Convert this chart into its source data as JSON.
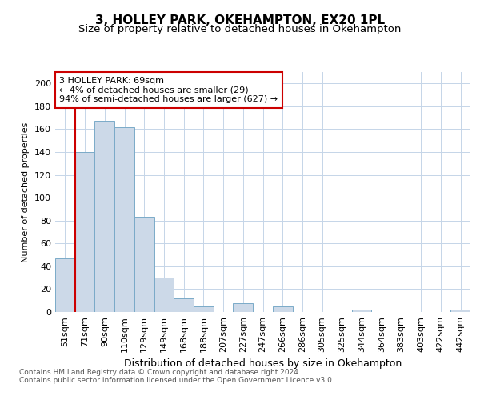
{
  "title": "3, HOLLEY PARK, OKEHAMPTON, EX20 1PL",
  "subtitle": "Size of property relative to detached houses in Okehampton",
  "xlabel": "Distribution of detached houses by size in Okehampton",
  "ylabel": "Number of detached properties",
  "categories": [
    "51sqm",
    "71sqm",
    "90sqm",
    "110sqm",
    "129sqm",
    "149sqm",
    "168sqm",
    "188sqm",
    "207sqm",
    "227sqm",
    "247sqm",
    "266sqm",
    "286sqm",
    "305sqm",
    "325sqm",
    "344sqm",
    "364sqm",
    "383sqm",
    "403sqm",
    "422sqm",
    "442sqm"
  ],
  "values": [
    47,
    140,
    167,
    162,
    83,
    30,
    12,
    5,
    0,
    8,
    0,
    5,
    0,
    0,
    0,
    2,
    0,
    0,
    0,
    0,
    2
  ],
  "bar_color": "#ccd9e8",
  "bar_edge_color": "#7aaac8",
  "highlight_line_color": "#cc0000",
  "annotation_text": "3 HOLLEY PARK: 69sqm\n← 4% of detached houses are smaller (29)\n94% of semi-detached houses are larger (627) →",
  "annotation_box_color": "#ffffff",
  "annotation_box_edge_color": "#cc0000",
  "ylim": [
    0,
    210
  ],
  "yticks": [
    0,
    20,
    40,
    60,
    80,
    100,
    120,
    140,
    160,
    180,
    200
  ],
  "footer_text": "Contains HM Land Registry data © Crown copyright and database right 2024.\nContains public sector information licensed under the Open Government Licence v3.0.",
  "background_color": "#ffffff",
  "plot_background_color": "#ffffff",
  "title_fontsize": 11,
  "subtitle_fontsize": 9.5,
  "xlabel_fontsize": 9,
  "ylabel_fontsize": 8,
  "tick_fontsize": 8,
  "annotation_fontsize": 8,
  "footer_fontsize": 6.5
}
